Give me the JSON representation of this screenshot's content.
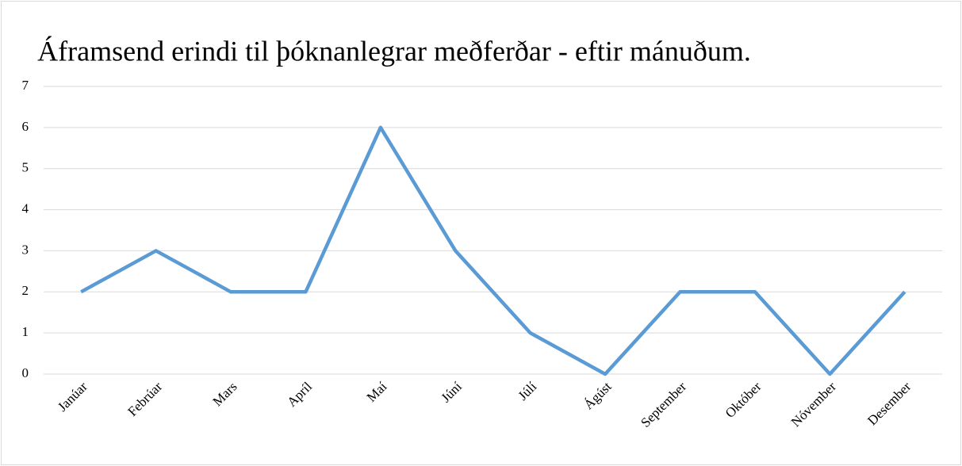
{
  "chart_data": {
    "type": "line",
    "title": "Áframsend erindi til þóknanlegrar meðferðar - eftir mánuðum.",
    "categories": [
      "Janúar",
      "Febrúar",
      "Mars",
      "Apríl",
      "Maí",
      "Júní",
      "Júlí",
      "Ágúst",
      "September",
      "Október",
      "Nóvember",
      "Desember"
    ],
    "values": [
      2,
      3,
      2,
      2,
      6,
      3,
      1,
      0,
      2,
      2,
      0,
      2
    ],
    "color": "#5b9bd5",
    "ylim": [
      0,
      7
    ],
    "yticks": [
      0,
      1,
      2,
      3,
      4,
      5,
      6,
      7
    ],
    "grid": true
  }
}
